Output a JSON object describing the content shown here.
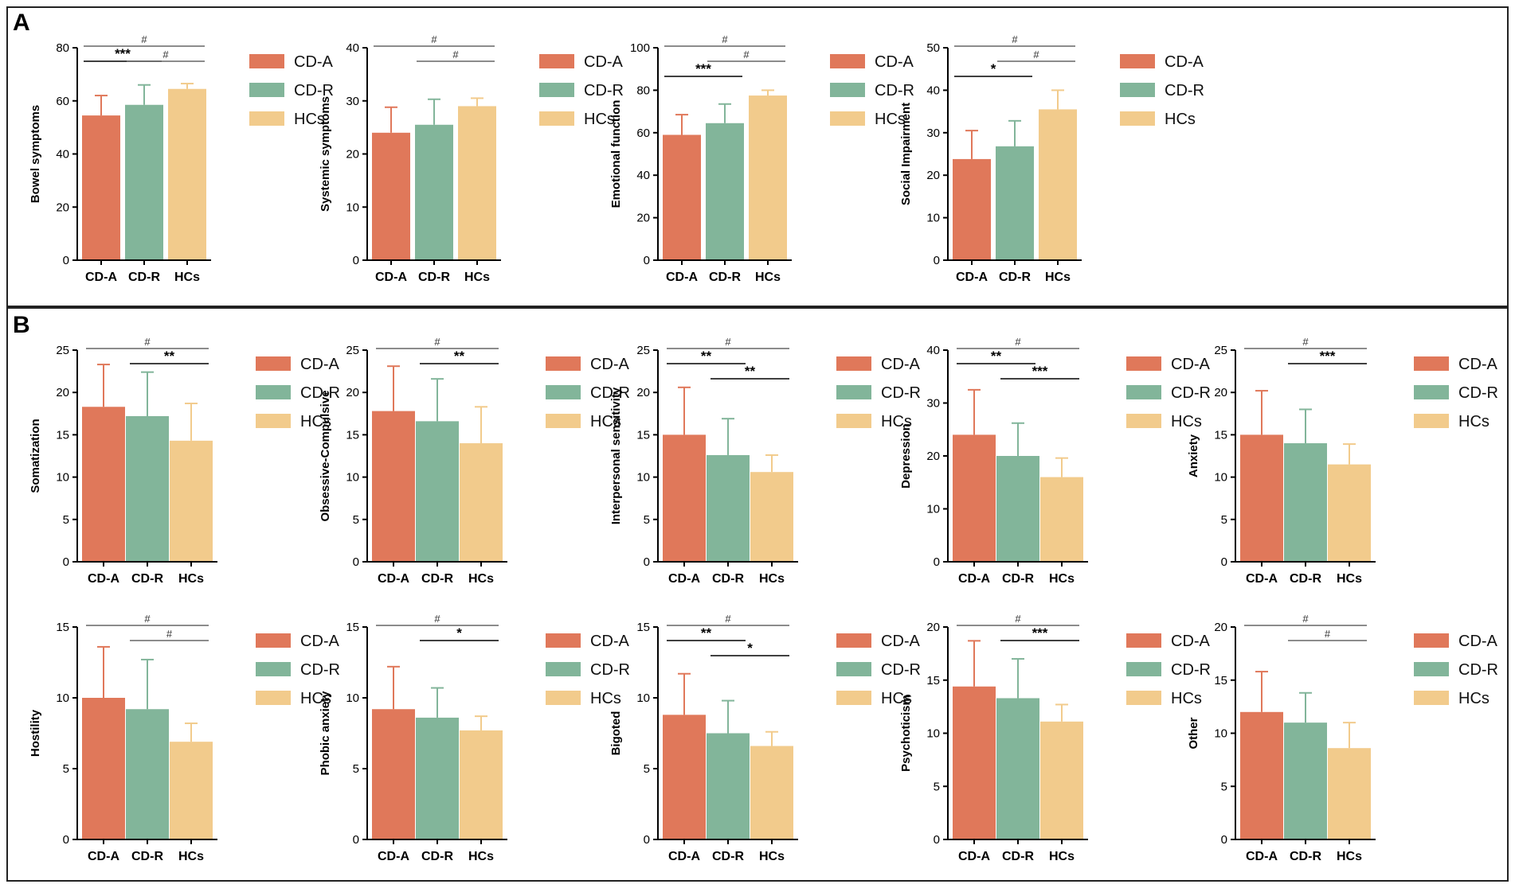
{
  "panels": [
    {
      "letter": "A"
    },
    {
      "letter": "B"
    }
  ],
  "colors": {
    "CD-A": "#E0785A",
    "CD-R": "#82B59A",
    "HCs": "#F2CB8C",
    "axis": "#000000"
  },
  "legend": [
    "CD-A",
    "CD-R",
    "HCs"
  ],
  "chart_data": [
    {
      "type": "bar",
      "panel": "A",
      "row": 0,
      "col": 0,
      "ylabel": "Bowel symptoms",
      "categories": [
        "CD-A",
        "CD-R",
        "HCs"
      ],
      "ylim": [
        0,
        80
      ],
      "yticks": [
        0,
        20,
        40,
        60,
        80
      ],
      "values": [
        54.5,
        58.5,
        64.5
      ],
      "errors": [
        7.5,
        7.5,
        2.0
      ],
      "brackets": [
        {
          "from": 0,
          "to": 2,
          "label": "#",
          "level": 0
        },
        {
          "from": 0,
          "to": 1,
          "label": "***",
          "level": 1
        },
        {
          "from": 1,
          "to": 2,
          "label": "#",
          "level": 1
        }
      ]
    },
    {
      "type": "bar",
      "panel": "A",
      "row": 0,
      "col": 1,
      "ylabel": "Systemic symptoms",
      "categories": [
        "CD-A",
        "CD-R",
        "HCs"
      ],
      "ylim": [
        0,
        40
      ],
      "yticks": [
        0,
        10,
        20,
        30,
        40
      ],
      "values": [
        24,
        25.5,
        29
      ],
      "errors": [
        4.8,
        4.8,
        1.5
      ],
      "brackets": [
        {
          "from": 0,
          "to": 2,
          "label": "#",
          "level": 0
        },
        {
          "from": 1,
          "to": 2,
          "label": "#",
          "level": 1
        }
      ]
    },
    {
      "type": "bar",
      "panel": "A",
      "row": 0,
      "col": 2,
      "ylabel": "Emotional function",
      "categories": [
        "CD-A",
        "CD-R",
        "HCs"
      ],
      "ylim": [
        0,
        100
      ],
      "yticks": [
        0,
        20,
        40,
        60,
        80,
        100
      ],
      "values": [
        59,
        64.5,
        77.5
      ],
      "errors": [
        9.5,
        9.0,
        2.5
      ],
      "brackets": [
        {
          "from": 0,
          "to": 2,
          "label": "#",
          "level": 0
        },
        {
          "from": 0,
          "to": 1,
          "label": "***",
          "level": 2
        },
        {
          "from": 1,
          "to": 2,
          "label": "#",
          "level": 1
        }
      ]
    },
    {
      "type": "bar",
      "panel": "A",
      "row": 0,
      "col": 3,
      "ylabel": "Social Impairment",
      "categories": [
        "CD-A",
        "CD-R",
        "HCs"
      ],
      "ylim": [
        0,
        50
      ],
      "yticks": [
        0,
        10,
        20,
        30,
        40,
        50
      ],
      "values": [
        23.8,
        26.8,
        35.5
      ],
      "errors": [
        6.7,
        6.0,
        4.5
      ],
      "brackets": [
        {
          "from": 0,
          "to": 2,
          "label": "#",
          "level": 0
        },
        {
          "from": 0,
          "to": 1,
          "label": "*",
          "level": 2
        },
        {
          "from": 1,
          "to": 2,
          "label": "#",
          "level": 1
        }
      ]
    },
    {
      "type": "bar",
      "panel": "B",
      "row": 1,
      "col": 0,
      "ylabel": "Somatization",
      "categories": [
        "CD-A",
        "CD-R",
        "HCs"
      ],
      "ylim": [
        0,
        25
      ],
      "yticks": [
        0,
        5,
        10,
        15,
        20,
        25
      ],
      "values": [
        18.3,
        17.2,
        14.3
      ],
      "errors": [
        5.0,
        5.2,
        4.4
      ],
      "brackets": [
        {
          "from": 0,
          "to": 2,
          "label": "#",
          "level": 0
        },
        {
          "from": 1,
          "to": 2,
          "label": "**",
          "level": 1
        }
      ]
    },
    {
      "type": "bar",
      "panel": "B",
      "row": 1,
      "col": 1,
      "ylabel": "Obsessive-Compulsive",
      "categories": [
        "CD-A",
        "CD-R",
        "HCs"
      ],
      "ylim": [
        0,
        25
      ],
      "yticks": [
        0,
        5,
        10,
        15,
        20,
        25
      ],
      "values": [
        17.8,
        16.6,
        14.0
      ],
      "errors": [
        5.3,
        5.0,
        4.3
      ],
      "brackets": [
        {
          "from": 0,
          "to": 2,
          "label": "#",
          "level": 0
        },
        {
          "from": 1,
          "to": 2,
          "label": "**",
          "level": 1
        }
      ]
    },
    {
      "type": "bar",
      "panel": "B",
      "row": 1,
      "col": 2,
      "ylabel": "Interpersonal sensitivity",
      "categories": [
        "CD-A",
        "CD-R",
        "HCs"
      ],
      "ylim": [
        0,
        25
      ],
      "yticks": [
        0,
        5,
        10,
        15,
        20,
        25
      ],
      "values": [
        15.0,
        12.6,
        10.6
      ],
      "errors": [
        5.6,
        4.3,
        2.0
      ],
      "brackets": [
        {
          "from": 0,
          "to": 2,
          "label": "#",
          "level": 0
        },
        {
          "from": 0,
          "to": 1,
          "label": "**",
          "level": 1
        },
        {
          "from": 1,
          "to": 2,
          "label": "**",
          "level": 2
        }
      ]
    },
    {
      "type": "bar",
      "panel": "B",
      "row": 1,
      "col": 3,
      "ylabel": "Depression",
      "categories": [
        "CD-A",
        "CD-R",
        "HCs"
      ],
      "ylim": [
        0,
        40
      ],
      "yticks": [
        0,
        10,
        20,
        30,
        40
      ],
      "values": [
        24.0,
        20.0,
        16.0
      ],
      "errors": [
        8.5,
        6.2,
        3.6
      ],
      "brackets": [
        {
          "from": 0,
          "to": 2,
          "label": "#",
          "level": 0
        },
        {
          "from": 0,
          "to": 1,
          "label": "**",
          "level": 1
        },
        {
          "from": 1,
          "to": 2,
          "label": "***",
          "level": 2
        }
      ]
    },
    {
      "type": "bar",
      "panel": "B",
      "row": 1,
      "col": 4,
      "ylabel": "Anxiety",
      "categories": [
        "CD-A",
        "CD-R",
        "HCs"
      ],
      "ylim": [
        0,
        25
      ],
      "yticks": [
        0,
        5,
        10,
        15,
        20,
        25
      ],
      "values": [
        15.0,
        14.0,
        11.5
      ],
      "errors": [
        5.2,
        4.0,
        2.4
      ],
      "brackets": [
        {
          "from": 0,
          "to": 2,
          "label": "#",
          "level": 0
        },
        {
          "from": 1,
          "to": 2,
          "label": "***",
          "level": 1
        }
      ]
    },
    {
      "type": "bar",
      "panel": "B",
      "row": 2,
      "col": 0,
      "ylabel": "Hostility",
      "categories": [
        "CD-A",
        "CD-R",
        "HCs"
      ],
      "ylim": [
        0,
        15
      ],
      "yticks": [
        0,
        5,
        10,
        15
      ],
      "values": [
        10.0,
        9.2,
        6.9
      ],
      "errors": [
        3.6,
        3.5,
        1.3
      ],
      "brackets": [
        {
          "from": 0,
          "to": 2,
          "label": "#",
          "level": 0
        },
        {
          "from": 1,
          "to": 2,
          "label": "#",
          "level": 1
        }
      ]
    },
    {
      "type": "bar",
      "panel": "B",
      "row": 2,
      "col": 1,
      "ylabel": "Phobic anxiety",
      "categories": [
        "CD-A",
        "CD-R",
        "HCs"
      ],
      "ylim": [
        0,
        15
      ],
      "yticks": [
        0,
        5,
        10,
        15
      ],
      "values": [
        9.2,
        8.6,
        7.7
      ],
      "errors": [
        3.0,
        2.1,
        1.0
      ],
      "brackets": [
        {
          "from": 0,
          "to": 2,
          "label": "#",
          "level": 0
        },
        {
          "from": 1,
          "to": 2,
          "label": "*",
          "level": 1
        }
      ]
    },
    {
      "type": "bar",
      "panel": "B",
      "row": 2,
      "col": 2,
      "ylabel": "Bigoted",
      "categories": [
        "CD-A",
        "CD-R",
        "HCs"
      ],
      "ylim": [
        0,
        15
      ],
      "yticks": [
        0,
        5,
        10,
        15
      ],
      "values": [
        8.8,
        7.5,
        6.6
      ],
      "errors": [
        2.9,
        2.3,
        1.0
      ],
      "brackets": [
        {
          "from": 0,
          "to": 2,
          "label": "#",
          "level": 0
        },
        {
          "from": 0,
          "to": 1,
          "label": "**",
          "level": 1
        },
        {
          "from": 1,
          "to": 2,
          "label": "*",
          "level": 2
        }
      ]
    },
    {
      "type": "bar",
      "panel": "B",
      "row": 2,
      "col": 3,
      "ylabel": "Psychoticism",
      "categories": [
        "CD-A",
        "CD-R",
        "HCs"
      ],
      "ylim": [
        0,
        20
      ],
      "yticks": [
        0,
        5,
        10,
        15,
        20
      ],
      "values": [
        14.4,
        13.3,
        11.1
      ],
      "errors": [
        4.3,
        3.7,
        1.6
      ],
      "brackets": [
        {
          "from": 0,
          "to": 2,
          "label": "#",
          "level": 0
        },
        {
          "from": 1,
          "to": 2,
          "label": "***",
          "level": 1
        }
      ]
    },
    {
      "type": "bar",
      "panel": "B",
      "row": 2,
      "col": 4,
      "ylabel": "Other",
      "categories": [
        "CD-A",
        "CD-R",
        "HCs"
      ],
      "ylim": [
        0,
        20
      ],
      "yticks": [
        0,
        5,
        10,
        15,
        20
      ],
      "values": [
        12.0,
        11.0,
        8.6
      ],
      "errors": [
        3.8,
        2.8,
        2.4
      ],
      "brackets": [
        {
          "from": 0,
          "to": 2,
          "label": "#",
          "level": 0
        },
        {
          "from": 1,
          "to": 2,
          "label": "#",
          "level": 1
        }
      ]
    }
  ]
}
